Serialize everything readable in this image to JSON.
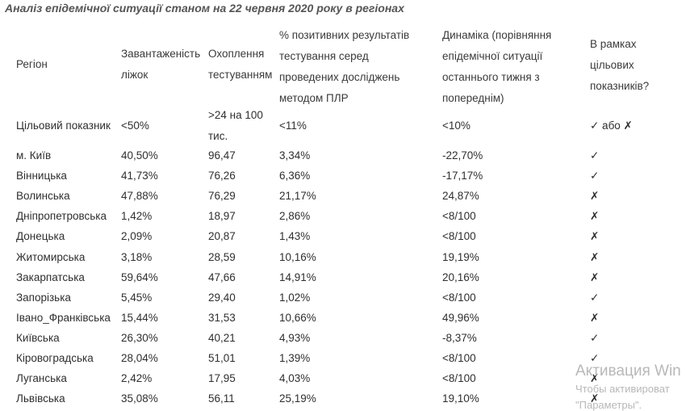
{
  "title": "Аналіз епідемічної ситуації станом на 22 червня 2020 року в регіонах",
  "headers": {
    "region": "Регіон",
    "beds": "Завантаженість ліжок",
    "testing": "Охоплення тестуванням",
    "positive": "% позитивних результатів тестування серед проведених досліджень методом ПЛР",
    "dynamics": "Динаміка (порівняння епідемічної ситуації останнього тижня з попереднім)",
    "target": "В рамках цільових показників?"
  },
  "target_row": {
    "region": "Цільовий показник",
    "beds": "<50%",
    "testing": ">24 на 100 тис.",
    "positive": "<11%",
    "dynamics": "<10%",
    "target": "✓ або ✗"
  },
  "rows": [
    {
      "region": "м. Київ",
      "beds": "40,50%",
      "testing": "96,47",
      "positive": "3,34%",
      "dynamics": "-22,70%",
      "target": "✓"
    },
    {
      "region": "Вінницька",
      "beds": "41,73%",
      "testing": "76,26",
      "positive": "6,36%",
      "dynamics": "-17,17%",
      "target": "✓"
    },
    {
      "region": "Волинська",
      "beds": "47,88%",
      "testing": "76,29",
      "positive": "21,17%",
      "dynamics": "24,87%",
      "target": "✗"
    },
    {
      "region": "Дніпропетровська",
      "beds": "1,42%",
      "testing": "18,97",
      "positive": "2,86%",
      "dynamics": "<8/100",
      "target": "✗"
    },
    {
      "region": "Донецька",
      "beds": "2,09%",
      "testing": "20,87",
      "positive": "1,43%",
      "dynamics": "<8/100",
      "target": "✗"
    },
    {
      "region": "Житомирська",
      "beds": "3,18%",
      "testing": "28,59",
      "positive": "10,16%",
      "dynamics": "19,19%",
      "target": "✗"
    },
    {
      "region": "Закарпатська",
      "beds": "59,64%",
      "testing": "47,66",
      "positive": "14,91%",
      "dynamics": "20,16%",
      "target": "✗"
    },
    {
      "region": "Запорізька",
      "beds": "5,45%",
      "testing": "29,40",
      "positive": "1,02%",
      "dynamics": "<8/100",
      "target": "✓"
    },
    {
      "region": "Івано_Франківська",
      "beds": "15,44%",
      "testing": "31,53",
      "positive": "10,66%",
      "dynamics": "49,96%",
      "target": "✗"
    },
    {
      "region": "Київська",
      "beds": "26,30%",
      "testing": "40,21",
      "positive": "4,93%",
      "dynamics": "-8,37%",
      "target": "✓"
    },
    {
      "region": "Кіровоградська",
      "beds": "28,04%",
      "testing": "51,01",
      "positive": "1,39%",
      "dynamics": "<8/100",
      "target": "✓"
    },
    {
      "region": "Луганська",
      "beds": "2,42%",
      "testing": "17,95",
      "positive": "4,03%",
      "dynamics": "<8/100",
      "target": "✗"
    },
    {
      "region": "Львівська",
      "beds": "35,08%",
      "testing": "56,11",
      "positive": "25,19%",
      "dynamics": "19,10%",
      "target": "✗"
    }
  ],
  "watermark": {
    "title": "Активация Win",
    "line1": "Чтобы активироват",
    "line2": "\"Параметры\"."
  }
}
